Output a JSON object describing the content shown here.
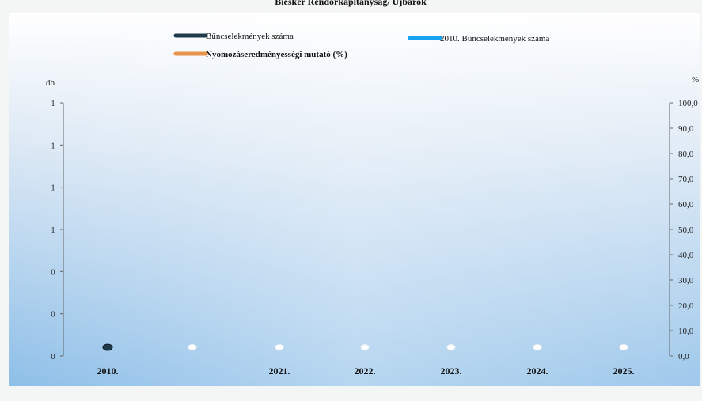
{
  "chart_data": {
    "type": "line",
    "title": "Biesker Rendőrkapitányság/ Újbarok",
    "categories": [
      "2010.",
      "",
      "2021.",
      "2022.",
      "2023.",
      "2024.",
      "2025."
    ],
    "y_left": {
      "label": "db",
      "tick_labels": [
        "0",
        "0",
        "0",
        "1",
        "1",
        "1",
        "1"
      ],
      "ylim": [
        0,
        1.2
      ]
    },
    "y_right": {
      "label": "%",
      "tick_labels": [
        "0,0",
        "10,0",
        "20,0",
        "30,0",
        "40,0",
        "50,0",
        "60,0",
        "70,0",
        "80,0",
        "90,0",
        "100,0"
      ],
      "ylim": [
        0,
        100
      ]
    },
    "series": [
      {
        "name": "Bűncselekmények száma",
        "axis": "left",
        "color": "#1f3a4d",
        "values": [
          0,
          null,
          null,
          null,
          null,
          null,
          null
        ]
      },
      {
        "name": "2010. Bűncselekmények száma",
        "axis": "left",
        "color": "#1aa3ee",
        "values": [
          null,
          null,
          null,
          null,
          null,
          null,
          null
        ]
      },
      {
        "name": "Nyomozáseredményességi mutató (%)",
        "axis": "right",
        "color": "#e8934a",
        "values": [
          null,
          0,
          0,
          0,
          0,
          0,
          0
        ]
      }
    ],
    "grid": false,
    "legend_position": "top"
  }
}
